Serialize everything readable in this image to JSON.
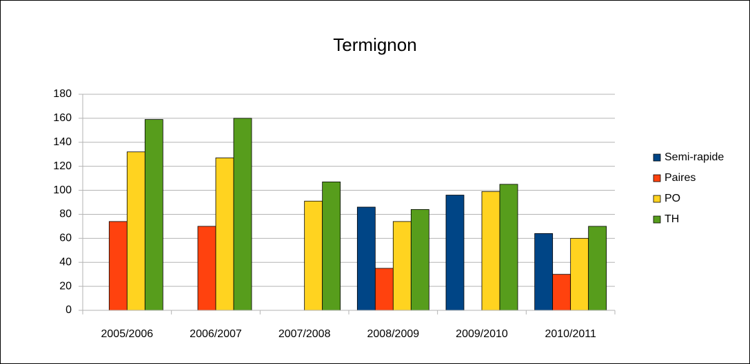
{
  "chart_data": {
    "type": "bar",
    "title": "Termignon",
    "categories": [
      "2005/2006",
      "2006/2007",
      "2007/2008",
      "2008/2009",
      "2009/2010",
      "2010/2011"
    ],
    "series": [
      {
        "name": "Semi-rapide",
        "color": "#004586",
        "values": [
          null,
          null,
          null,
          86,
          96,
          64
        ]
      },
      {
        "name": "Paires",
        "color": "#ff420e",
        "values": [
          74,
          70,
          null,
          35,
          null,
          30
        ]
      },
      {
        "name": "PO",
        "color": "#ffd320",
        "values": [
          132,
          127,
          91,
          74,
          99,
          60
        ]
      },
      {
        "name": "TH",
        "color": "#579d1c",
        "values": [
          159,
          160,
          107,
          84,
          105,
          70
        ]
      }
    ],
    "ylim": [
      0,
      180
    ],
    "yticks": [
      0,
      20,
      40,
      60,
      80,
      100,
      120,
      140,
      160,
      180
    ],
    "grid": true,
    "legend": "right"
  }
}
